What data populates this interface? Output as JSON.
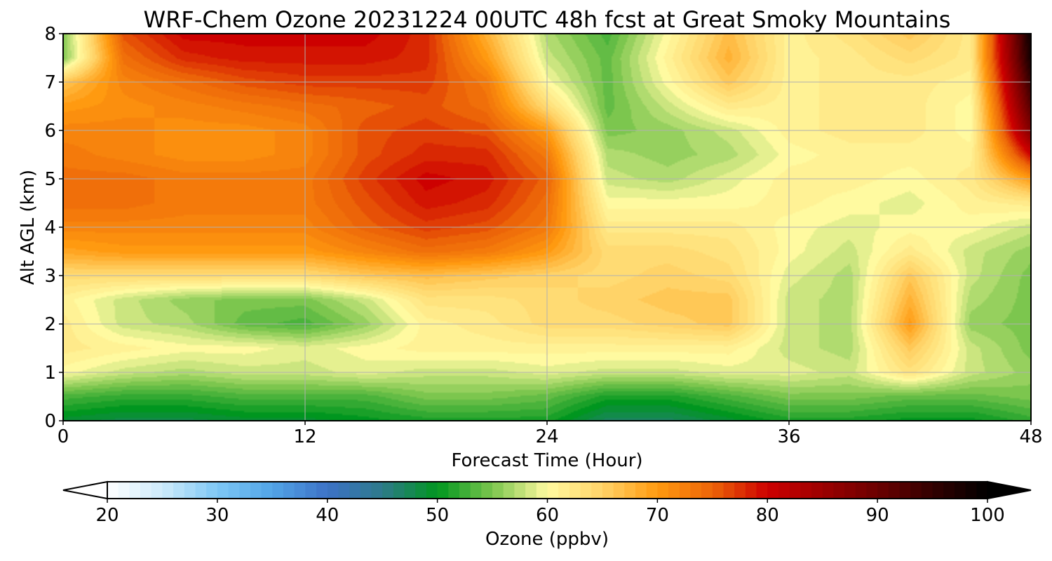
{
  "chart_data": {
    "type": "heatmap",
    "title": "WRF-Chem Ozone  20231224 00UTC 48h fcst at Great Smoky Mountains",
    "xlabel": "Forecast Time (Hour)",
    "ylabel": "Alt AGL (km)",
    "xlim": [
      0,
      48
    ],
    "ylim": [
      0,
      8
    ],
    "xticks": [
      "0",
      "12",
      "24",
      "36",
      "48"
    ],
    "yticks": [
      "0",
      "1",
      "2",
      "3",
      "4",
      "5",
      "6",
      "7",
      "8"
    ],
    "grid": true,
    "x_hours": [
      0,
      3,
      6,
      9,
      12,
      15,
      18,
      21,
      24,
      27,
      30,
      33,
      36,
      39,
      42,
      45,
      48
    ],
    "z_km": [
      0,
      0.5,
      1,
      1.5,
      2,
      2.5,
      3,
      3.5,
      4,
      4.5,
      5,
      5.5,
      6,
      6.5,
      7,
      7.5,
      8
    ],
    "values": [
      [
        49,
        48,
        48,
        49,
        49,
        50,
        51,
        51,
        51,
        47,
        47,
        49,
        51,
        51,
        50,
        50,
        52
      ],
      [
        53,
        52,
        52,
        53,
        53,
        53,
        55,
        55,
        54,
        51,
        51,
        53,
        55,
        55,
        54,
        54,
        55
      ],
      [
        60,
        58,
        57,
        58,
        58,
        59,
        58,
        58,
        59,
        58,
        58,
        59,
        59,
        58,
        63,
        58,
        56
      ],
      [
        62,
        61,
        60,
        60,
        59,
        60,
        61,
        61,
        61,
        61,
        61,
        61,
        58,
        57,
        66,
        58,
        55
      ],
      [
        62,
        58,
        57,
        54,
        53,
        56,
        61,
        62,
        64,
        64,
        65,
        66,
        58,
        57,
        70,
        56,
        55
      ],
      [
        61,
        58,
        56,
        55,
        55,
        58,
        63,
        63,
        64,
        65,
        66,
        66,
        58,
        57,
        68,
        57,
        55
      ],
      [
        64,
        64,
        64,
        64,
        64,
        66,
        67,
        66,
        65,
        64,
        65,
        64,
        59,
        57,
        66,
        58,
        55
      ],
      [
        69,
        70,
        70,
        70,
        70,
        72,
        74,
        73,
        70,
        64,
        64,
        63,
        60,
        58,
        62,
        58,
        56
      ],
      [
        72,
        72,
        72,
        72,
        72,
        75,
        77,
        76,
        73,
        62,
        62,
        62,
        60,
        59,
        60,
        60,
        58
      ],
      [
        74,
        74,
        73,
        73,
        73,
        76,
        79,
        78,
        74,
        60,
        60,
        60,
        61,
        60,
        59,
        61,
        62
      ],
      [
        74,
        74,
        73,
        73,
        73,
        77,
        80,
        79,
        75,
        58,
        57,
        59,
        61,
        61,
        60,
        62,
        70
      ],
      [
        73,
        72,
        71,
        71,
        72,
        76,
        78,
        78,
        73,
        57,
        56,
        57,
        60,
        61,
        61,
        61,
        80
      ],
      [
        72,
        72,
        71,
        71,
        72,
        76,
        77,
        76,
        70,
        55,
        56,
        58,
        61,
        62,
        62,
        60,
        88
      ],
      [
        70,
        71,
        72,
        73,
        74,
        75,
        76,
        74,
        64,
        54,
        58,
        62,
        61,
        62,
        62,
        60,
        92
      ],
      [
        66,
        72,
        74,
        76,
        77,
        77,
        77,
        73,
        60,
        54,
        60,
        66,
        61,
        62,
        62,
        61,
        95
      ],
      [
        55,
        74,
        78,
        79,
        79,
        79,
        78,
        70,
        58,
        54,
        61,
        68,
        61,
        62,
        64,
        62,
        98
      ],
      [
        55,
        76,
        80,
        80,
        80,
        80,
        78,
        68,
        57,
        53,
        60,
        67,
        61,
        63,
        66,
        62,
        99
      ]
    ],
    "colorbar": {
      "label": "Ozone  (ppbv)",
      "min": 20,
      "max": 100,
      "ticks": [
        "20",
        "30",
        "40",
        "50",
        "60",
        "70",
        "80",
        "90",
        "100"
      ],
      "extend": "both",
      "color_stops": [
        [
          20,
          "#ffffff"
        ],
        [
          25,
          "#cdeafa"
        ],
        [
          30,
          "#7ec8f6"
        ],
        [
          35,
          "#52a4e6"
        ],
        [
          40,
          "#3d72c7"
        ],
        [
          45,
          "#2d7a8a"
        ],
        [
          50,
          "#00961f"
        ],
        [
          55,
          "#7cc64e"
        ],
        [
          60,
          "#fffaa0"
        ],
        [
          65,
          "#ffd368"
        ],
        [
          70,
          "#ff9a10"
        ],
        [
          75,
          "#ec6408"
        ],
        [
          80,
          "#cd0000"
        ],
        [
          85,
          "#9c0000"
        ],
        [
          90,
          "#6b0000"
        ],
        [
          95,
          "#320000"
        ],
        [
          100,
          "#000000"
        ]
      ]
    }
  }
}
